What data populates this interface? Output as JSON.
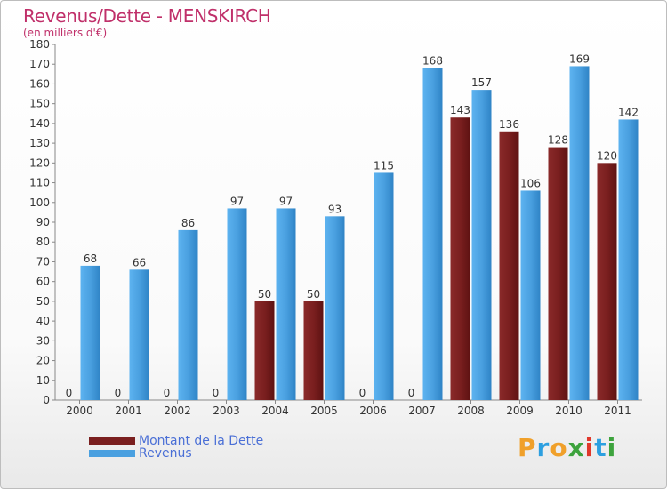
{
  "header": {
    "title": "Revenus/Dette - MENSKIRCH",
    "subtitle": "(en milliers d'€)"
  },
  "legend": {
    "debt_label": "Montant de la Dette",
    "revenue_label": "Revenus"
  },
  "logo": {
    "letters": [
      "P",
      "r",
      "o",
      "x",
      "i",
      "t",
      "i"
    ],
    "colors": [
      "#f0a02a",
      "#2c9fe0",
      "#f0a02a",
      "#3da33d",
      "#e0382b",
      "#2c9fe0",
      "#3da33d"
    ]
  },
  "colors": {
    "debt": "#7a1f1f",
    "revenue": "#4aa0e0"
  },
  "chart_data": {
    "type": "bar",
    "title": "Revenus/Dette - MENSKIRCH",
    "subtitle": "(en milliers d'€)",
    "categories": [
      "2000",
      "2001",
      "2002",
      "2003",
      "2004",
      "2005",
      "2006",
      "2007",
      "2008",
      "2009",
      "2010",
      "2011"
    ],
    "series": [
      {
        "name": "Montant de la Dette",
        "values": [
          0,
          0,
          0,
          0,
          50,
          50,
          0,
          0,
          143,
          136,
          128,
          120
        ]
      },
      {
        "name": "Revenus",
        "values": [
          68,
          66,
          86,
          97,
          97,
          93,
          115,
          168,
          157,
          106,
          169,
          142
        ]
      }
    ],
    "ylim": [
      0,
      180
    ],
    "yticks": [
      0,
      10,
      20,
      30,
      40,
      50,
      60,
      70,
      80,
      90,
      100,
      110,
      120,
      130,
      140,
      150,
      160,
      170,
      180
    ],
    "grid": false,
    "legend_position": "bottom-left"
  }
}
